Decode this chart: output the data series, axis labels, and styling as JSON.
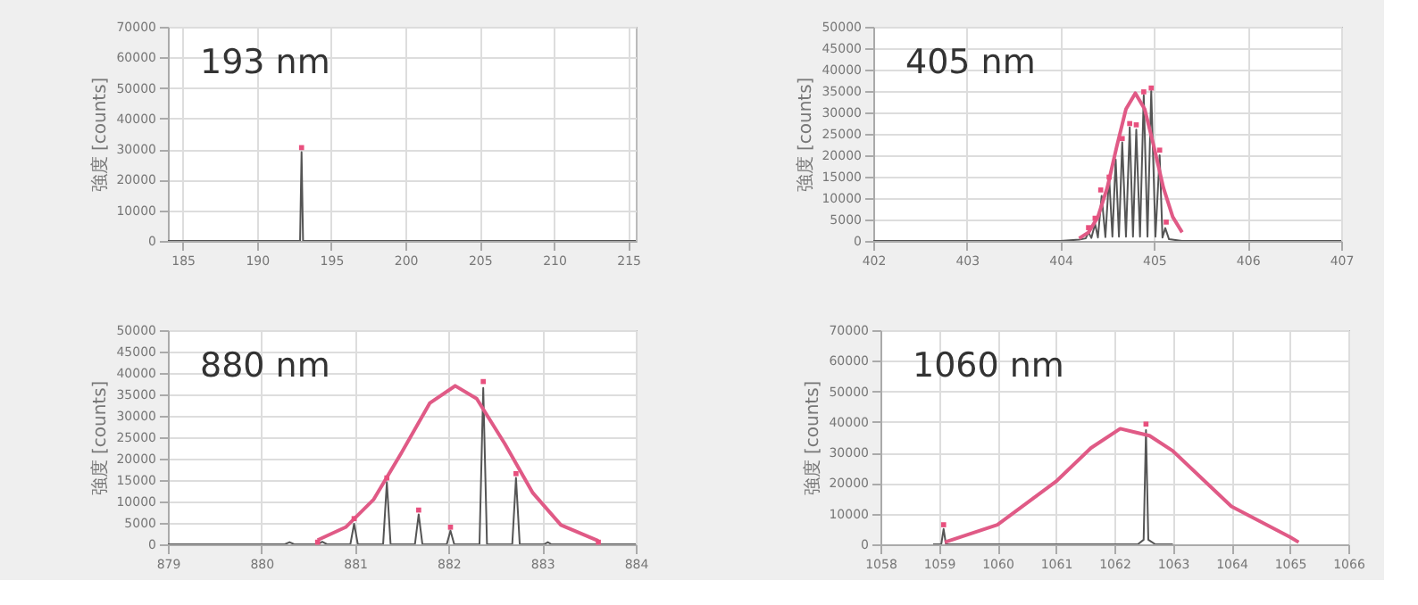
{
  "chart_data": [
    {
      "type": "line",
      "title": "193 nm",
      "ylabel": "強度 [counts]",
      "xlim": [
        184,
        215.5
      ],
      "xticks": [
        185,
        190,
        195,
        200,
        205,
        210,
        215
      ],
      "ylim": [
        0,
        70000
      ],
      "yticks": [
        0,
        10000,
        20000,
        30000,
        40000,
        50000,
        60000,
        70000
      ],
      "grid": true,
      "series": [
        {
          "type": "line",
          "color": "#555555",
          "x": [
            184,
            192.9,
            193,
            193.1,
            215.5
          ],
          "values": [
            0,
            0,
            29000,
            0,
            0
          ]
        },
        {
          "type": "scatter",
          "marker": "square",
          "color": "#e8507e",
          "x": [
            193
          ],
          "values": [
            30500
          ]
        }
      ]
    },
    {
      "type": "line",
      "title": "405 nm",
      "ylabel": "強度 [counts]",
      "xlim": [
        402,
        407
      ],
      "xticks": [
        402,
        403,
        404,
        405,
        406,
        407
      ],
      "ylim": [
        0,
        50000
      ],
      "yticks": [
        0,
        5000,
        10000,
        15000,
        20000,
        25000,
        30000,
        35000,
        40000,
        45000,
        50000
      ],
      "grid": true,
      "series": [
        {
          "type": "line",
          "color": "#555555",
          "x": [
            402,
            404.0,
            404.2,
            404.27,
            404.3,
            404.33,
            404.37,
            404.4,
            404.44,
            404.48,
            404.52,
            404.555,
            404.59,
            404.625,
            404.66,
            404.7,
            404.74,
            404.775,
            404.81,
            404.85,
            404.89,
            404.93,
            404.97,
            405.015,
            405.06,
            405.09,
            405.12,
            405.16,
            405.3,
            407
          ],
          "values": [
            0,
            0,
            300,
            600,
            2000,
            700,
            4000,
            800,
            10500,
            900,
            15000,
            1000,
            19000,
            1000,
            23000,
            1000,
            26500,
            1000,
            26000,
            1000,
            34000,
            1000,
            35000,
            1000,
            20000,
            800,
            3000,
            400,
            0,
            0
          ]
        },
        {
          "type": "line",
          "color": "#e05a86",
          "x": [
            404.2,
            404.3,
            404.4,
            404.5,
            404.6,
            404.7,
            404.8,
            404.9,
            405.0,
            405.1,
            405.2,
            405.3
          ],
          "values": [
            600,
            2000,
            5600,
            12400,
            21900,
            30800,
            34500,
            30800,
            21900,
            12400,
            5600,
            2000
          ]
        },
        {
          "type": "scatter",
          "marker": "square",
          "color": "#e8507e",
          "x": [
            404.3,
            404.37,
            404.43,
            404.52,
            404.66,
            404.74,
            404.81,
            404.89,
            404.97,
            405.06,
            405.13
          ],
          "values": [
            3100,
            5300,
            11900,
            14900,
            23900,
            27400,
            27100,
            34800,
            35700,
            21200,
            4400
          ]
        }
      ]
    },
    {
      "type": "line",
      "title": "880 nm",
      "ylabel": "強度 [counts]",
      "xlim": [
        879,
        884
      ],
      "xticks": [
        879,
        880,
        881,
        882,
        883,
        884
      ],
      "ylim": [
        0,
        50000
      ],
      "yticks": [
        0,
        5000,
        10000,
        15000,
        20000,
        25000,
        30000,
        35000,
        40000,
        45000,
        50000
      ],
      "grid": true,
      "series": [
        {
          "type": "line",
          "color": "#555555",
          "x": [
            879,
            880.25,
            880.3,
            880.35,
            880.6,
            880.65,
            880.7,
            880.95,
            880.99,
            881.03,
            881.3,
            881.34,
            881.38,
            881.64,
            881.68,
            881.72,
            881.98,
            882.02,
            882.06,
            882.33,
            882.37,
            882.41,
            882.68,
            882.72,
            882.76,
            883.02,
            883.06,
            883.1,
            884
          ],
          "values": [
            0,
            0,
            500,
            0,
            0,
            600,
            0,
            0,
            4800,
            0,
            0,
            14500,
            0,
            0,
            7000,
            0,
            0,
            3200,
            0,
            0,
            36500,
            0,
            0,
            15500,
            0,
            0,
            500,
            0,
            0
          ]
        },
        {
          "type": "line",
          "color": "#e05a86",
          "x": [
            880.6,
            880.9,
            881.2,
            881.5,
            881.8,
            882.07,
            882.3,
            882.6,
            882.9,
            883.2,
            883.6
          ],
          "values": [
            1000,
            4000,
            10500,
            21500,
            33000,
            37000,
            34000,
            23500,
            12000,
            4500,
            800
          ]
        },
        {
          "type": "scatter",
          "marker": "square",
          "color": "#e8507e",
          "x": [
            880.6,
            880.99,
            881.34,
            881.68,
            882.02,
            882.37,
            882.72,
            883.6
          ],
          "values": [
            500,
            6000,
            15500,
            8000,
            4000,
            38000,
            16500,
            500
          ]
        }
      ]
    },
    {
      "type": "line",
      "title": "1060 nm",
      "ylabel": "強度 [counts]",
      "xlim": [
        1058,
        1066
      ],
      "xticks": [
        1058,
        1059,
        1060,
        1061,
        1062,
        1063,
        1064,
        1065,
        1066
      ],
      "ylim": [
        0,
        70000
      ],
      "yticks": [
        0,
        10000,
        20000,
        30000,
        40000,
        50000,
        60000,
        70000
      ],
      "grid": true,
      "series": [
        {
          "type": "line",
          "color": "#555555",
          "x": [
            1058.9,
            1059.04,
            1059.08,
            1059.12,
            1062.4,
            1062.5,
            1062.54,
            1062.58,
            1062.7,
            1063.0
          ],
          "values": [
            0,
            0,
            5000,
            0,
            0,
            1500,
            37300,
            1500,
            0,
            0
          ]
        },
        {
          "type": "line",
          "color": "#e05a86",
          "x": [
            1059.1,
            1060.0,
            1061.0,
            1061.6,
            1062.1,
            1062.6,
            1063.0,
            1064.0,
            1065.0,
            1065.15
          ],
          "values": [
            700,
            6400,
            20500,
            31500,
            37800,
            35500,
            30500,
            12400,
            2400,
            700
          ]
        },
        {
          "type": "scatter",
          "marker": "square",
          "color": "#e8507e",
          "x": [
            1059.08,
            1062.54
          ],
          "values": [
            6400,
            39300
          ]
        }
      ]
    }
  ]
}
